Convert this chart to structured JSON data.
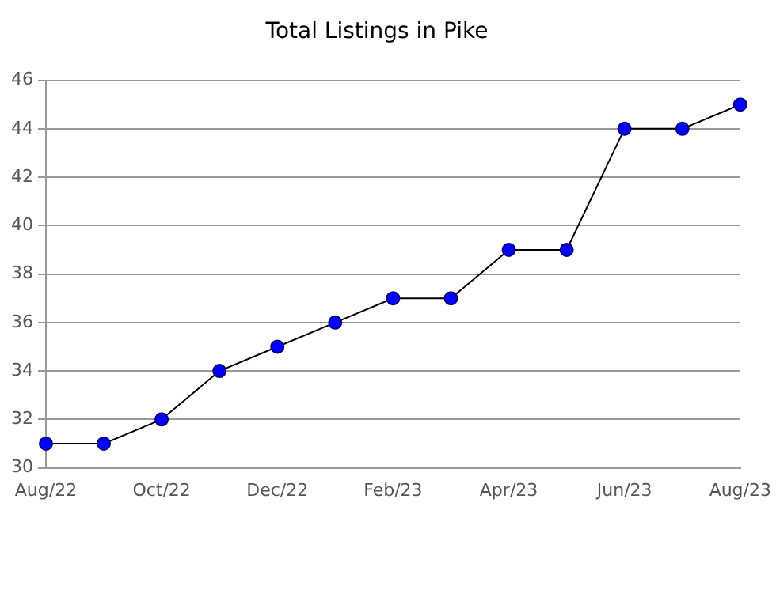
{
  "chart_data": {
    "type": "line",
    "title": "Total Listings in Pike",
    "categories": [
      "Aug/22",
      null,
      "Oct/22",
      null,
      "Dec/22",
      null,
      "Feb/23",
      null,
      "Apr/23",
      null,
      "Jun/23",
      null,
      "Aug/23"
    ],
    "series": [
      {
        "color": "#000000",
        "values": [
          31,
          31,
          32,
          34,
          35,
          36,
          37,
          37,
          39,
          39,
          44,
          44,
          45
        ]
      }
    ],
    "ylim": [
      30,
      46
    ],
    "yticks": [
      30,
      32,
      34,
      36,
      38,
      40,
      42,
      44,
      46
    ],
    "grid": "y",
    "marker": "circle",
    "line_style": "solid",
    "legend": false
  }
}
